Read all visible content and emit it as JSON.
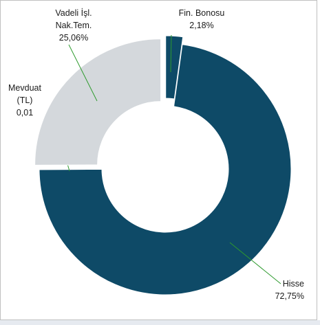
{
  "chart_data": {
    "type": "donut",
    "title": "",
    "slices": [
      {
        "label": "Fin. Bonosu",
        "label_lines": [
          "Fin. Bonosu"
        ],
        "value": 2.18,
        "value_label": "2,18%",
        "color": "#0e4a67"
      },
      {
        "label": "Hisse",
        "label_lines": [
          "Hisse"
        ],
        "value": 72.75,
        "value_label": "72,75%",
        "color": "#0e4a67"
      },
      {
        "label": "Mevduat (TL)",
        "label_lines": [
          "Mevduat",
          "(TL)"
        ],
        "value": 0.01,
        "value_label": "0,01",
        "color": "#0e4a67"
      },
      {
        "label": "Vadeli İşl. Nak.Tem.",
        "label_lines": [
          "Vadeli İşl.",
          "Nak.Tem."
        ],
        "value": 25.06,
        "value_label": "25,06%",
        "color": "#d4d8dc"
      }
    ],
    "leader_line_color": "#2e9a2e",
    "legend": "none"
  }
}
